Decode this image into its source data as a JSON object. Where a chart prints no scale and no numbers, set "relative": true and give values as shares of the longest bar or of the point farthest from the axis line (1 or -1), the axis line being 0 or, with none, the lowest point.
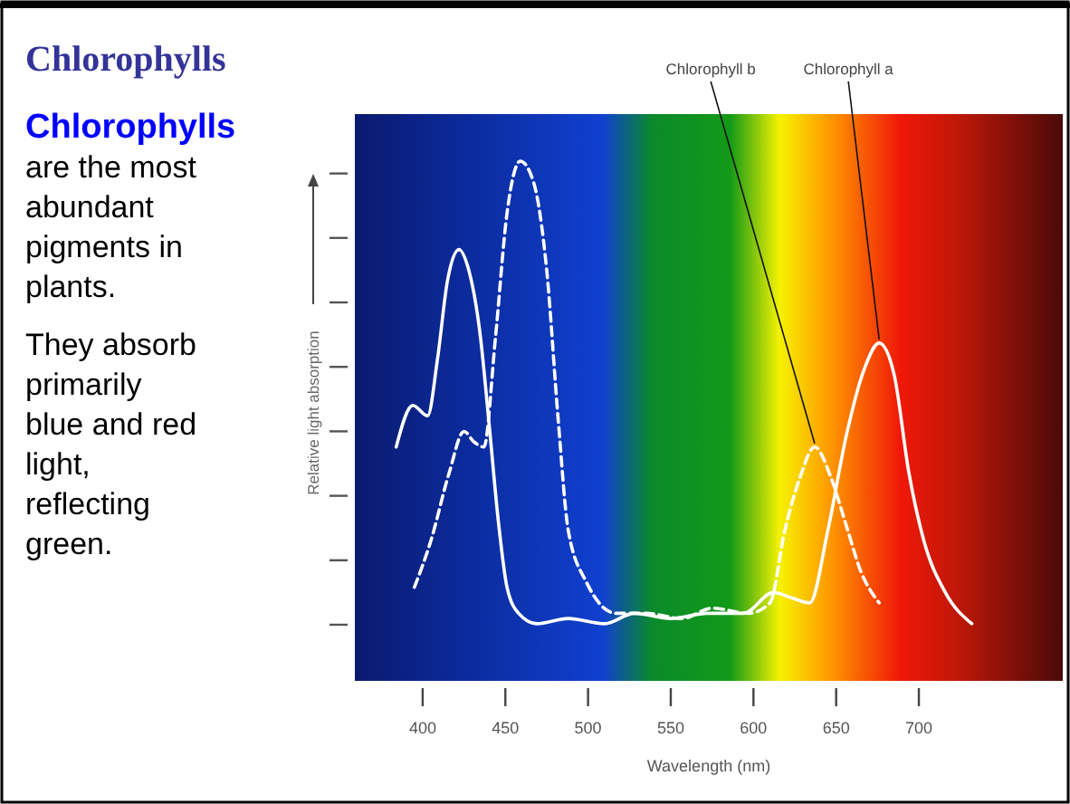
{
  "chart_data": {
    "type": "line",
    "title": "Chlorophylls",
    "subtitle": "Chlorophylls",
    "annotations": [
      "are the most abundant pigments in plants.",
      "They absorb primarily blue and red light, reflecting green."
    ],
    "xlabel": "Wavelength (nm)",
    "ylabel": "Relative light absorption",
    "relative": true,
    "xlim": [
      359,
      787
    ],
    "xticks": [
      400,
      450,
      500,
      550,
      600,
      650,
      700
    ],
    "grid": false,
    "legend": false,
    "marker": "none",
    "series": [
      {
        "name": "Chlorophyll a",
        "color": "#ffffff",
        "line_style": "solid",
        "x": [
          384,
          394,
          403,
          409,
          415,
          422,
          427,
          435,
          440,
          446,
          451,
          458,
          469,
          488,
          510,
          528,
          550,
          572,
          594,
          612,
          623,
          634,
          645,
          656,
          667,
          676,
          685,
          694,
          703,
          716,
          732
        ],
        "values": [
          0.45,
          0.53,
          0.51,
          0.62,
          0.77,
          0.83,
          0.8,
          0.66,
          0.5,
          0.3,
          0.18,
          0.13,
          0.11,
          0.12,
          0.11,
          0.13,
          0.12,
          0.13,
          0.13,
          0.17,
          0.16,
          0.15,
          0.29,
          0.47,
          0.6,
          0.65,
          0.59,
          0.4,
          0.27,
          0.17,
          0.11
        ]
      },
      {
        "name": "Chlorophyll b",
        "color": "#ffffff",
        "line_style": "dashed",
        "x": [
          395,
          405,
          416,
          425,
          431,
          437,
          444,
          451,
          459,
          467,
          475,
          482,
          488,
          499,
          517,
          535,
          557,
          575,
          597,
          610,
          619,
          628,
          637,
          647,
          656,
          665,
          676
        ],
        "values": [
          0.18,
          0.27,
          0.4,
          0.48,
          0.46,
          0.45,
          0.66,
          0.9,
          1,
          0.96,
          0.79,
          0.5,
          0.29,
          0.19,
          0.13,
          0.13,
          0.12,
          0.14,
          0.13,
          0.15,
          0.29,
          0.39,
          0.45,
          0.39,
          0.3,
          0.21,
          0.15
        ]
      }
    ]
  }
}
